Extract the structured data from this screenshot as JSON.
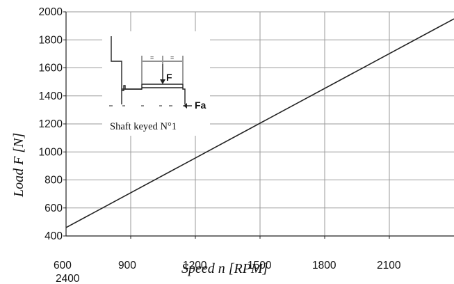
{
  "chart_data": {
    "type": "line",
    "xlabel": "Speed n [RPM]",
    "ylabel": "Load F [N]",
    "xlim": [
      600,
      2400
    ],
    "ylim": [
      400,
      2000
    ],
    "x_ticks": [
      "600",
      "900",
      "1200",
      "1500",
      "1800",
      "2100",
      "2400"
    ],
    "y_ticks": [
      "400",
      "600",
      "800",
      "1000",
      "1200",
      "1400",
      "1600",
      "1800",
      "2000"
    ],
    "grid": true,
    "series": [
      {
        "x": [
          600,
          2400
        ],
        "y": [
          460,
          1950
        ]
      }
    ],
    "inset": {
      "caption": "Shaft keyed N°1",
      "force_label": "F",
      "axial_label": "Fa",
      "dim_marks": [
        "=",
        "="
      ]
    }
  }
}
